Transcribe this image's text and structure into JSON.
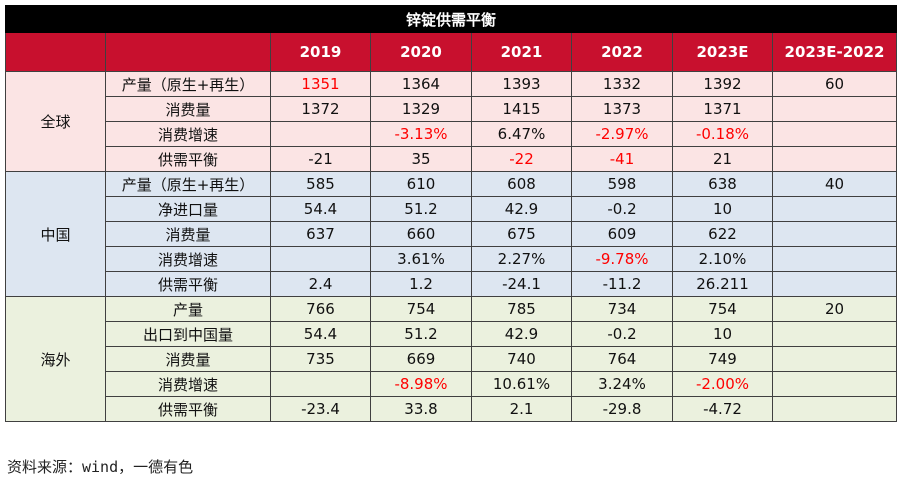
{
  "title": "锌锭供需平衡",
  "headers": [
    "",
    "",
    "2019",
    "2020",
    "2021",
    "2022",
    "2023E",
    "2023E-2022"
  ],
  "neg_color": "#ff0000",
  "header_color": "#c8102e",
  "groups": [
    {
      "region": "全球",
      "rows": [
        {
          "label": "产量（原生+再生）",
          "values": [
            "1351",
            "1364",
            "1393",
            "1332",
            "1392",
            "60"
          ]
        },
        {
          "label": "消费量",
          "values": [
            "1372",
            "1329",
            "1415",
            "1373",
            "1371",
            ""
          ]
        },
        {
          "label": "消费增速",
          "values": [
            "",
            "-3.13%",
            "6.47%",
            "-2.97%",
            "-0.18%",
            ""
          ]
        },
        {
          "label": "供需平衡",
          "values": [
            "-21",
            "35",
            "-22",
            "-41",
            "21",
            ""
          ]
        }
      ]
    },
    {
      "region": "中国",
      "rows": [
        {
          "label": "产量（原生+再生）",
          "values": [
            "585",
            "610",
            "608",
            "598",
            "638",
            "40"
          ]
        },
        {
          "label": "净进口量",
          "values": [
            "54.4",
            "51.2",
            "42.9",
            "-0.2",
            "10",
            ""
          ]
        },
        {
          "label": "消费量",
          "values": [
            "637",
            "660",
            "675",
            "609",
            "622",
            ""
          ]
        },
        {
          "label": "消费增速",
          "values": [
            "",
            "3.61%",
            "2.27%",
            "-9.78%",
            "2.10%",
            ""
          ]
        },
        {
          "label": "供需平衡",
          "values": [
            "2.4",
            "1.2",
            "-24.1",
            "-11.2",
            "26.211",
            ""
          ]
        }
      ]
    },
    {
      "region": "海外",
      "rows": [
        {
          "label": "产量",
          "values": [
            "766",
            "754",
            "785",
            "734",
            "754",
            "20"
          ]
        },
        {
          "label": "出口到中国量",
          "values": [
            "54.4",
            "51.2",
            "42.9",
            "-0.2",
            "10",
            ""
          ]
        },
        {
          "label": "消费量",
          "values": [
            "735",
            "669",
            "740",
            "764",
            "749",
            ""
          ]
        },
        {
          "label": "消费增速",
          "values": [
            "",
            "-8.98%",
            "10.61%",
            "3.24%",
            "-2.00%",
            ""
          ]
        },
        {
          "label": "供需平衡",
          "values": [
            "-23.4",
            "33.8",
            "2.1",
            "-29.8",
            "-4.72",
            ""
          ]
        }
      ]
    }
  ],
  "red_cells": [
    "0.0.0",
    "0.2.1",
    "0.2.3",
    "0.2.4",
    "0.3.2",
    "0.3.3",
    "1.3.3",
    "2.3.1",
    "2.3.4"
  ],
  "source": "资料来源：wind，一德有色"
}
